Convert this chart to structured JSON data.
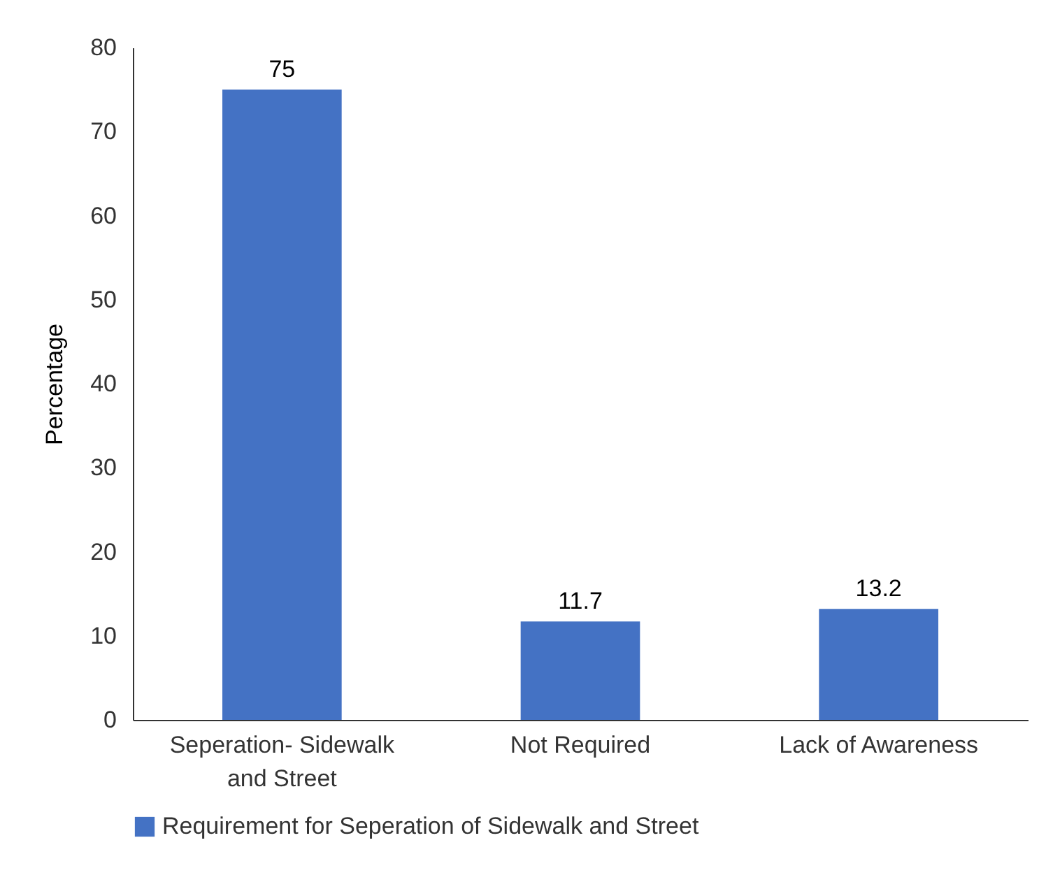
{
  "chart_data": {
    "type": "bar",
    "ylabel": "Percentage",
    "categories": [
      "Seperation- Sidewalk and Street",
      "Not Required",
      "Lack of Awareness"
    ],
    "series": [
      {
        "name": "Requirement for Seperation of Sidewalk and Street",
        "color": "#4472c4",
        "values": [
          75,
          11.7,
          13.2
        ]
      }
    ],
    "ylim": [
      0,
      80
    ],
    "yticks": [
      0,
      10,
      20,
      30,
      40,
      50,
      60,
      70,
      80
    ],
    "grid": false,
    "data_labels": true,
    "legend": "bottom"
  }
}
